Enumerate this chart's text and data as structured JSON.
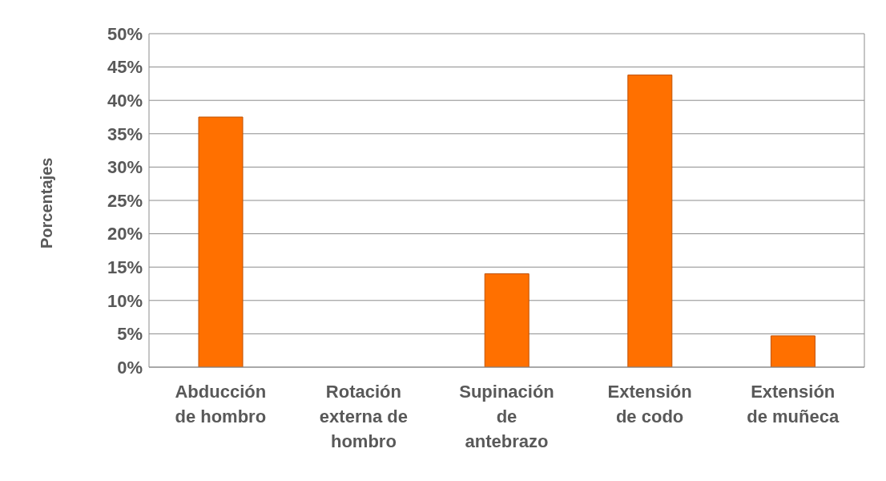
{
  "chart_data": {
    "type": "bar",
    "ylabel": "Porcentajes",
    "categories": [
      "Abducción de hombro",
      "Rotación externa de hombro",
      "Supinación de antebrazo",
      "Extensión de codo",
      "Extensión de muñeca"
    ],
    "values": [
      37.5,
      0,
      14,
      43.8,
      4.7
    ],
    "color": "#ff7000",
    "ylim": [
      0,
      50
    ],
    "yticks": [
      {
        "value": 0,
        "label": "0%"
      },
      {
        "value": 5,
        "label": "5%"
      },
      {
        "value": 10,
        "label": "10%"
      },
      {
        "value": 15,
        "label": "15%"
      },
      {
        "value": 20,
        "label": "20%"
      },
      {
        "value": 25,
        "label": "25%"
      },
      {
        "value": 30,
        "label": "30%"
      },
      {
        "value": 35,
        "label": "35%"
      },
      {
        "value": 40,
        "label": "40%"
      },
      {
        "value": 45,
        "label": "45%"
      },
      {
        "value": 50,
        "label": "50%"
      }
    ],
    "grid": "y",
    "legend": false
  }
}
